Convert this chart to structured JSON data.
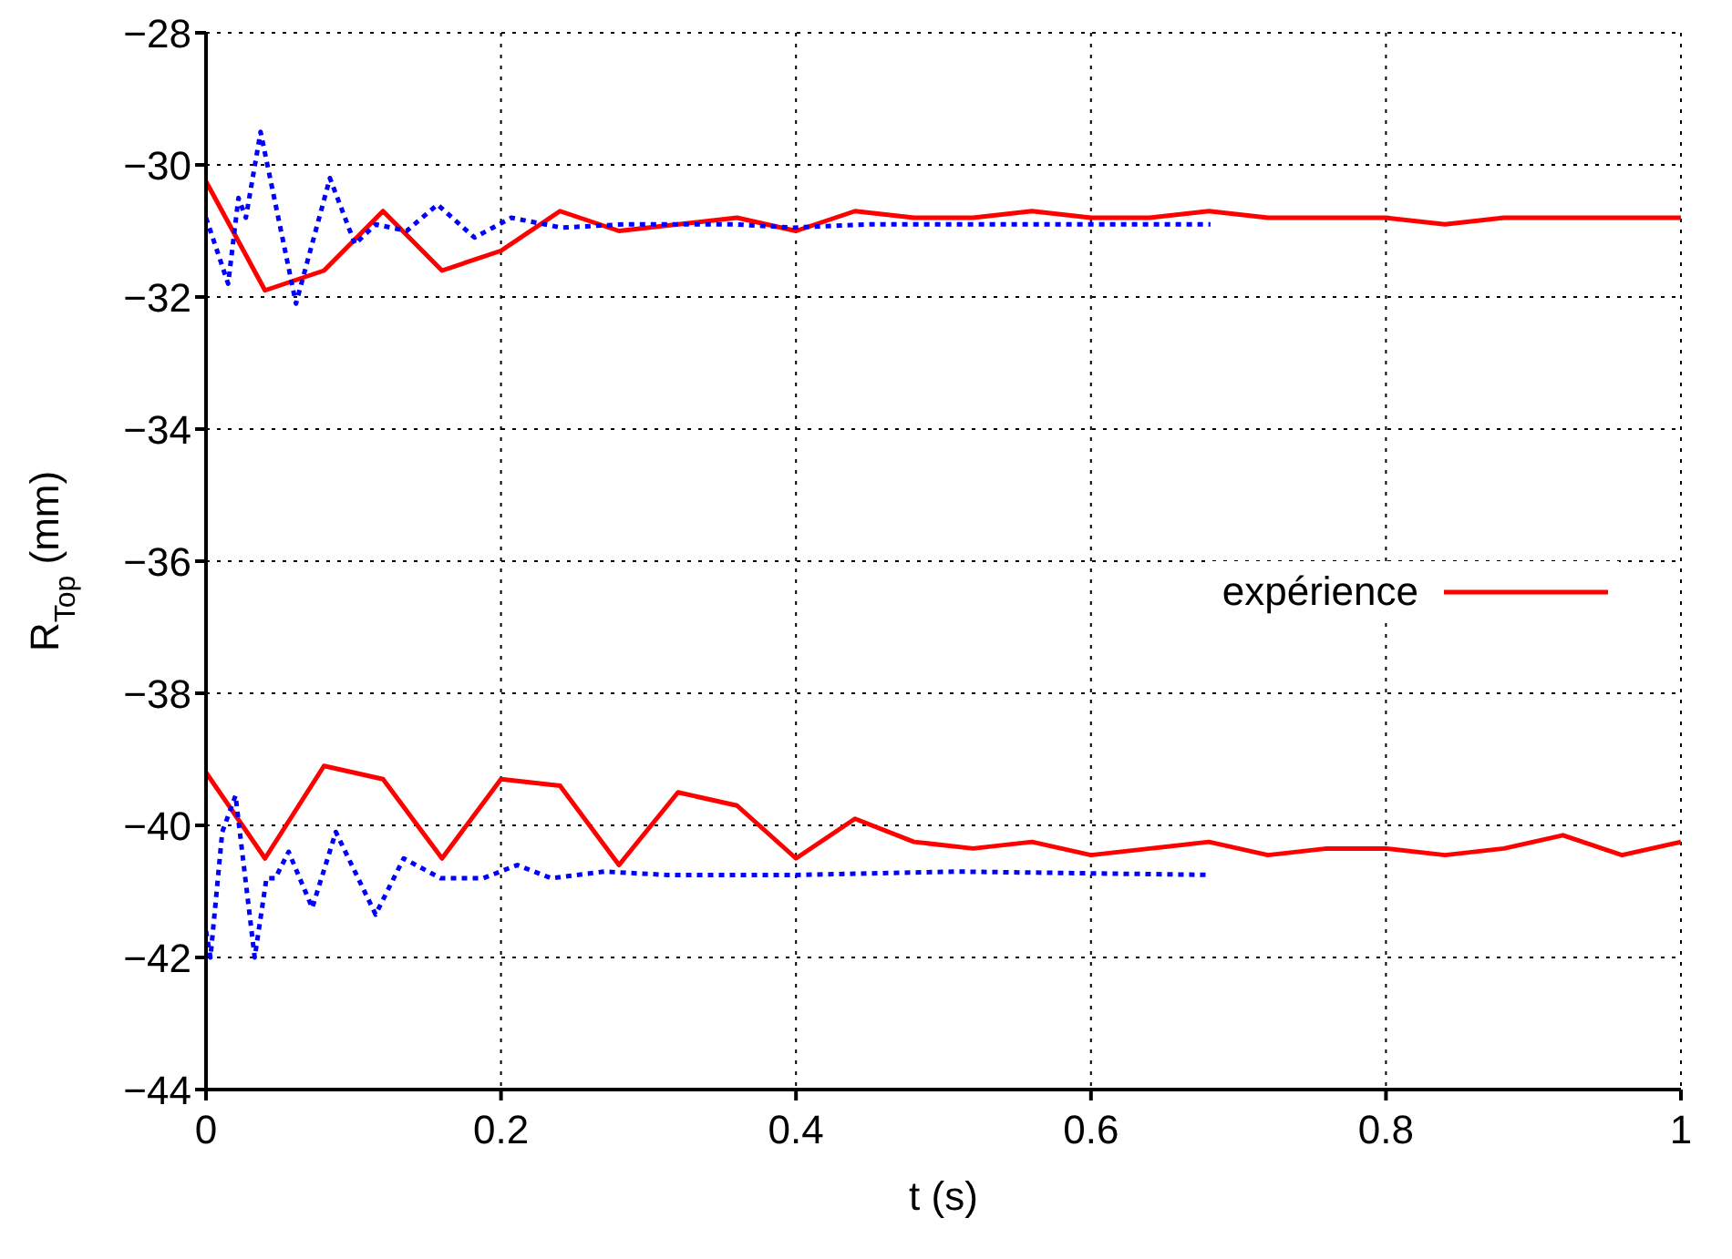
{
  "chart_data": {
    "type": "line",
    "xlabel": "t (s)",
    "ylabel": "R$_{Top}$ (mm)",
    "xlim": [
      0,
      1
    ],
    "xticks": [
      0,
      0.2,
      0.4,
      0.6,
      0.8,
      1
    ],
    "ylim": [
      -44,
      -28
    ],
    "yticks": [
      -44,
      -42,
      -40,
      -38,
      -36,
      -34,
      -32,
      -30,
      -28
    ],
    "grid": true,
    "legend": "right",
    "marker": "none",
    "series": [
      {
        "name": "expérience",
        "color": "#ff0000",
        "line_style": "solid",
        "x": [
          0,
          0.04,
          0.08,
          0.12,
          0.16,
          0.2,
          0.24,
          0.28,
          0.32,
          0.36,
          0.4,
          0.44,
          0.48,
          0.52,
          0.56,
          0.6,
          0.64,
          0.68,
          0.72,
          0.76,
          0.8,
          0.84,
          0.88,
          0.92,
          0.96,
          1
        ],
        "values": [
          -30.25,
          -31.9,
          -31.6,
          -30.7,
          -31.6,
          -31.3,
          -30.7,
          -31.0,
          -30.9,
          -30.8,
          -31.0,
          -30.7,
          -30.8,
          -30.8,
          -30.7,
          -30.8,
          -30.8,
          -30.7,
          -30.8,
          -30.8,
          -30.8,
          -30.9,
          -30.8,
          -30.8,
          -30.8,
          -30.8
        ]
      },
      {
        "color": "#ff0000",
        "line_style": "solid",
        "x": [
          0,
          0.04,
          0.08,
          0.12,
          0.16,
          0.2,
          0.24,
          0.28,
          0.32,
          0.36,
          0.4,
          0.44,
          0.48,
          0.52,
          0.56,
          0.6,
          0.64,
          0.68,
          0.72,
          0.76,
          0.8,
          0.84,
          0.88,
          0.92,
          0.96,
          1
        ],
        "values": [
          -39.2,
          -40.5,
          -39.1,
          -39.3,
          -40.5,
          -39.3,
          -39.4,
          -40.6,
          -39.5,
          -39.7,
          -40.5,
          -39.9,
          -40.25,
          -40.35,
          -40.25,
          -40.45,
          -40.35,
          -40.25,
          -40.45,
          -40.35,
          -40.35,
          -40.45,
          -40.35,
          -40.15,
          -40.45,
          -40.25
        ]
      },
      {
        "color": "#0000ff",
        "line_style": "dotted",
        "x": [
          0,
          0.015,
          0.022,
          0.027,
          0.037,
          0.061,
          0.084,
          0.101,
          0.115,
          0.136,
          0.157,
          0.182,
          0.207,
          0.241,
          0.283,
          0.358,
          0.398,
          0.45,
          0.517,
          0.6,
          0.681
        ],
        "values": [
          -30.8,
          -31.8,
          -30.5,
          -30.8,
          -29.5,
          -32.1,
          -30.2,
          -31.2,
          -30.9,
          -31.0,
          -30.6,
          -31.1,
          -30.8,
          -30.95,
          -30.9,
          -30.9,
          -30.95,
          -30.9,
          -30.9,
          -30.9,
          -30.9
        ]
      },
      {
        "color": "#0000ff",
        "line_style": "dotted",
        "x": [
          0,
          0.003,
          0.011,
          0.02,
          0.033,
          0.041,
          0.047,
          0.056,
          0.072,
          0.088,
          0.115,
          0.134,
          0.159,
          0.188,
          0.211,
          0.234,
          0.27,
          0.312,
          0.4,
          0.51,
          0.681
        ],
        "values": [
          -41.6,
          -42.0,
          -40.1,
          -39.55,
          -42.0,
          -40.8,
          -40.8,
          -40.4,
          -41.25,
          -40.1,
          -41.35,
          -40.5,
          -40.8,
          -40.8,
          -40.6,
          -40.8,
          -40.7,
          -40.75,
          -40.75,
          -40.7,
          -40.75
        ]
      }
    ]
  }
}
